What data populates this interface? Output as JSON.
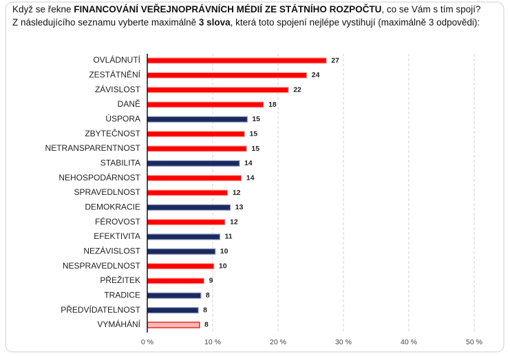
{
  "chart_data": {
    "type": "bar",
    "orientation": "horizontal",
    "title_parts": [
      "Když se řekne ",
      "FINANCOVÁNÍ VEŘEJNOPRÁVNÍCH MÉDIÍ ZE STÁTNÍHO ROZPOČTU",
      ", co se Vám s tím spojí?"
    ],
    "title_bold": [
      false,
      true,
      false
    ],
    "subtitle_parts": [
      "Z následujícího seznamu vyberte maximálně ",
      "3 slova",
      ", která toto spojení nejlépe vystihují (maximálně 3 odpovědi):"
    ],
    "subtitle_bold": [
      false,
      true,
      false
    ],
    "categories": [
      "OVLÁDNUTÍ",
      "ZESTÁTNĚNÍ",
      "ZÁVISLOST",
      "DANĚ",
      "ÚSPORA",
      "ZBYTEČNOST",
      "NETRANSPARENTNOST",
      "STABILITA",
      "NEHOSPODÁRNOST",
      "SPRAVEDLNOST",
      "DEMOKRACIE",
      "FÉROVOST",
      "EFEKTIVITA",
      "NEZÁVISLOST",
      "NESPRAVEDLNOST",
      "PŘEŽITEK",
      "TRADICE",
      "PŘEDVÍDATELNOST",
      "VYMÁHÁNÍ"
    ],
    "values": [
      27.4,
      24.4,
      21.6,
      17.8,
      15.3,
      14.9,
      15.2,
      14.1,
      14.4,
      12.3,
      12.7,
      11.9,
      11.1,
      10.4,
      10.2,
      8.7,
      8.2,
      7.8,
      8.0
    ],
    "value_labels": [
      "27",
      "24",
      "22",
      "18",
      "15",
      "15",
      "15",
      "14",
      "14",
      "12",
      "13",
      "12",
      "11",
      "10",
      "10",
      "9",
      "8",
      "8",
      "8"
    ],
    "colors": [
      "#ff0000",
      "#ff0000",
      "#ff0000",
      "#ff0000",
      "#1b2a5c",
      "#ff0000",
      "#ff0000",
      "#1b2a5c",
      "#ff0000",
      "#ff0000",
      "#1b2a5c",
      "#ff0000",
      "#1b2a5c",
      "#1b2a5c",
      "#ff0000",
      "#ff0000",
      "#1b2a5c",
      "#1b2a5c",
      "#f7b9b2"
    ],
    "xlim": [
      0,
      50
    ],
    "xticks": [
      {
        "value": 0,
        "label": "0 %"
      },
      {
        "value": 10,
        "label": "10 %"
      },
      {
        "value": 20,
        "label": "20 %"
      },
      {
        "value": 30,
        "label": "30 %"
      },
      {
        "value": 40,
        "label": "40 %"
      },
      {
        "value": 50,
        "label": "50 %"
      }
    ],
    "grid": true
  }
}
